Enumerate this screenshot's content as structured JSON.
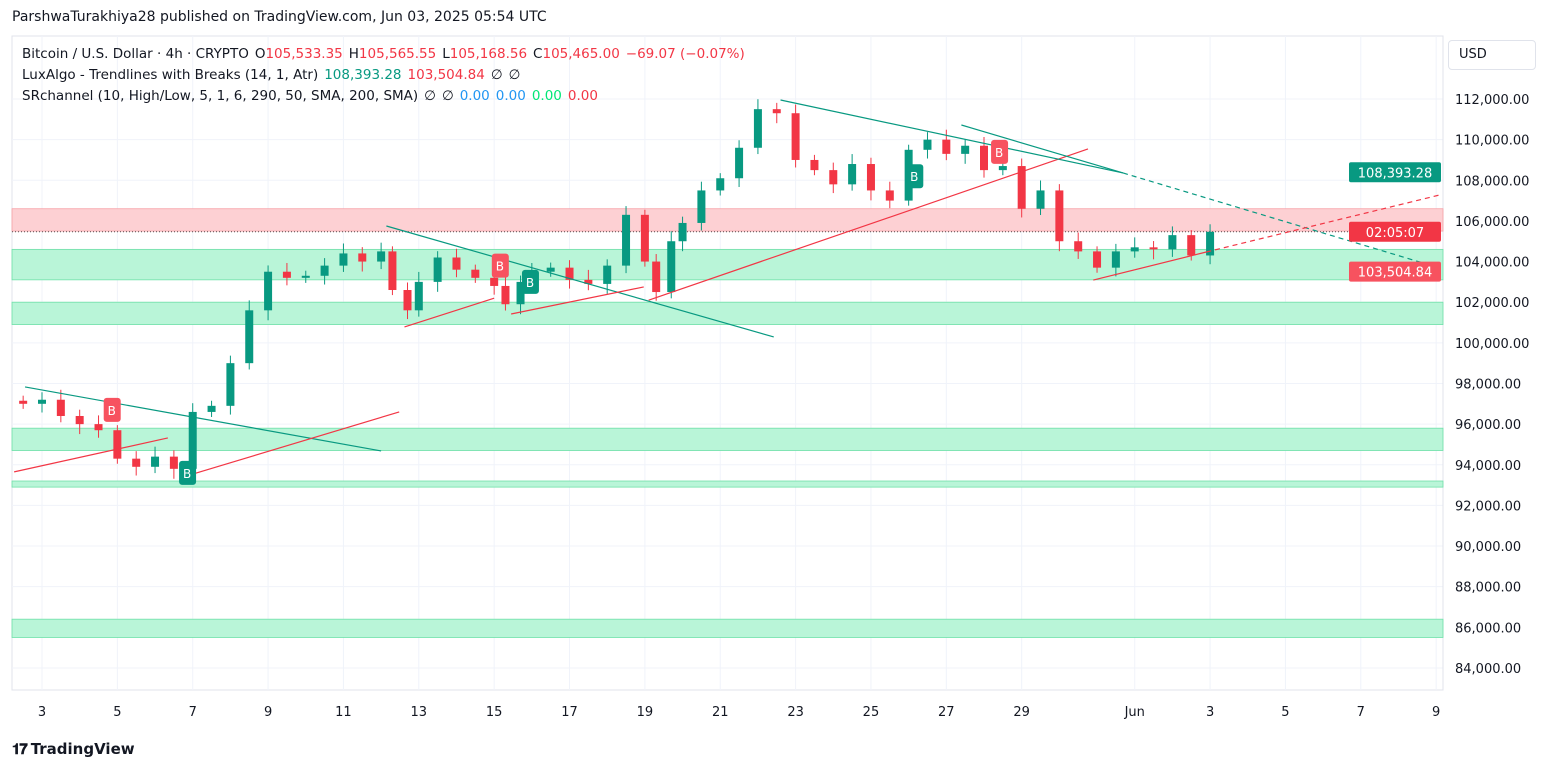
{
  "publisher": "ParshwaTurakhiya28 published on TradingView.com, Jun 03, 2025 05:54 UTC",
  "legend": {
    "symbol": "Bitcoin / U.S. Dollar · 4h · CRYPTO",
    "o_label": "O",
    "o": "105,533.35",
    "h_label": "H",
    "h": "105,565.55",
    "l_label": "L",
    "l": "105,168.56",
    "c_label": "C",
    "c": "105,465.00",
    "change": "−69.07 (−0.07%)",
    "indicator1": "LuxAlgo - Trendlines with Breaks (14, 1, Atr)",
    "ind1_v1": "108,393.28",
    "ind1_v2": "103,504.84",
    "ind1_v3": "∅",
    "ind1_v4": "∅",
    "indicator2": "SRchannel (10, High/Low, 5, 1, 6, 290, 50, SMA, 200, SMA)",
    "ind2_v1": "∅",
    "ind2_v2": "∅",
    "ind2_v3": "0.00",
    "ind2_v4": "0.00",
    "ind2_v5": "0.00",
    "ind2_v6": "0.00"
  },
  "currency_button": "USD",
  "footer_brand": "TradingView",
  "colors": {
    "up": "#089981",
    "down": "#f23645",
    "support_zone": "#b9f5d8",
    "resistance_zone": "#fdd0d3",
    "grid": "#f0f3fa"
  },
  "chart_data": {
    "type": "candlestick",
    "ylim": [
      83000,
      113500
    ],
    "y_ticks": [
      "84,000.00",
      "86,000.00",
      "88,000.00",
      "90,000.00",
      "92,000.00",
      "94,000.00",
      "96,000.00",
      "98,000.00",
      "100,000.00",
      "102,000.00",
      "104,000.00",
      "106,000.00",
      "108,000.00",
      "110,000.00",
      "112,000.00"
    ],
    "y_tick_values": [
      84000,
      86000,
      88000,
      90000,
      92000,
      94000,
      96000,
      98000,
      100000,
      102000,
      104000,
      106000,
      108000,
      110000,
      112000
    ],
    "x_range_days": [
      2.2,
      40.3
    ],
    "x_ticks": [
      {
        "label": "3",
        "day": 3
      },
      {
        "label": "5",
        "day": 5
      },
      {
        "label": "7",
        "day": 7
      },
      {
        "label": "9",
        "day": 9
      },
      {
        "label": "11",
        "day": 11
      },
      {
        "label": "13",
        "day": 13
      },
      {
        "label": "15",
        "day": 15
      },
      {
        "label": "17",
        "day": 17
      },
      {
        "label": "19",
        "day": 19
      },
      {
        "label": "21",
        "day": 21
      },
      {
        "label": "23",
        "day": 23
      },
      {
        "label": "25",
        "day": 25
      },
      {
        "label": "27",
        "day": 27
      },
      {
        "label": "29",
        "day": 29
      },
      {
        "label": "Jun",
        "day": 32
      },
      {
        "label": "3",
        "day": 34
      },
      {
        "label": "5",
        "day": 36
      },
      {
        "label": "7",
        "day": 38
      },
      {
        "label": "9",
        "day": 40
      }
    ],
    "closes": [
      [
        2.5,
        97000
      ],
      [
        3,
        97200
      ],
      [
        3.5,
        96400
      ],
      [
        4,
        96000
      ],
      [
        4.5,
        95700
      ],
      [
        5,
        94300
      ],
      [
        5.5,
        93900
      ],
      [
        6,
        94400
      ],
      [
        6.5,
        93800
      ],
      [
        7,
        96600
      ],
      [
        7.5,
        96900
      ],
      [
        8,
        99000
      ],
      [
        8.5,
        101600
      ],
      [
        9,
        103500
      ],
      [
        9.5,
        103200
      ],
      [
        10,
        103300
      ],
      [
        10.5,
        103800
      ],
      [
        11,
        104400
      ],
      [
        11.5,
        104000
      ],
      [
        12,
        104500
      ],
      [
        12.3,
        102600
      ],
      [
        12.7,
        101600
      ],
      [
        13,
        103000
      ],
      [
        13.5,
        104200
      ],
      [
        14,
        103600
      ],
      [
        14.5,
        103200
      ],
      [
        15,
        102800
      ],
      [
        15.3,
        101900
      ],
      [
        15.7,
        103000
      ],
      [
        16,
        103500
      ],
      [
        16.5,
        103700
      ],
      [
        17,
        103100
      ],
      [
        17.5,
        102900
      ],
      [
        18,
        103800
      ],
      [
        18.5,
        106300
      ],
      [
        19,
        104000
      ],
      [
        19.3,
        102500
      ],
      [
        19.7,
        105000
      ],
      [
        20,
        105900
      ],
      [
        20.5,
        107500
      ],
      [
        21,
        108100
      ],
      [
        21.5,
        109600
      ],
      [
        22,
        111500
      ],
      [
        22.5,
        111300
      ],
      [
        23,
        109000
      ],
      [
        23.5,
        108500
      ],
      [
        24,
        107800
      ],
      [
        24.5,
        108800
      ],
      [
        25,
        107500
      ],
      [
        25.5,
        107000
      ],
      [
        26,
        109500
      ],
      [
        26.5,
        110000
      ],
      [
        27,
        109300
      ],
      [
        27.5,
        109700
      ],
      [
        28,
        108500
      ],
      [
        28.5,
        108700
      ],
      [
        29,
        106600
      ],
      [
        29.5,
        107500
      ],
      [
        30,
        105000
      ],
      [
        30.5,
        104500
      ],
      [
        31,
        103700
      ],
      [
        31.5,
        104500
      ],
      [
        32,
        104700
      ],
      [
        32.5,
        104600
      ],
      [
        33,
        105300
      ],
      [
        33.5,
        104300
      ],
      [
        34,
        105465
      ]
    ],
    "zones": [
      {
        "kind": "resistance",
        "from": 105500,
        "to": 106600
      },
      {
        "kind": "support",
        "from": 103100,
        "to": 104600
      },
      {
        "kind": "support",
        "from": 100900,
        "to": 102000
      },
      {
        "kind": "support",
        "from": 94700,
        "to": 95800
      },
      {
        "kind": "support",
        "from": 92900,
        "to": 93200
      },
      {
        "kind": "support",
        "from": 85500,
        "to": 86400
      }
    ],
    "trendlines": [
      {
        "color": "teal",
        "p1": [
          2.55,
          97830
        ],
        "p2": [
          12.0,
          94680
        ]
      },
      {
        "color": "red",
        "p1": [
          2.26,
          93650
        ],
        "p2": [
          6.34,
          95320
        ]
      },
      {
        "color": "red",
        "p1": [
          6.66,
          93350
        ],
        "p2": [
          12.48,
          96600
        ]
      },
      {
        "color": "teal",
        "p1": [
          12.14,
          105750
        ],
        "p2": [
          22.42,
          100290
        ]
      },
      {
        "color": "red",
        "p1": [
          12.62,
          100780
        ],
        "p2": [
          15.0,
          102200
        ]
      },
      {
        "color": "red",
        "p1": [
          15.45,
          101420
        ],
        "p2": [
          18.97,
          102750
        ]
      },
      {
        "color": "red",
        "p1": [
          19.1,
          102100
        ],
        "p2": [
          30.76,
          109540
        ]
      },
      {
        "color": "teal",
        "p1": [
          22.6,
          111950
        ],
        "p2": [
          31.69,
          108360
        ]
      },
      {
        "color": "teal",
        "p1": [
          27.4,
          110720
        ],
        "p2": [
          31.69,
          108360
        ]
      },
      {
        "color": "teal",
        "p1": [
          31.69,
          108360
        ],
        "p2": [
          40.1,
          103680
        ],
        "dashed": true
      },
      {
        "color": "red",
        "p1": [
          30.9,
          103090
        ],
        "p2": [
          33.9,
          104470
        ]
      },
      {
        "color": "red",
        "p1": [
          33.9,
          104470
        ],
        "p2": [
          40.1,
          107280
        ],
        "dashed": true
      }
    ],
    "break_markers": [
      {
        "label": "B",
        "kind": "down",
        "day": 4.85,
        "price": 96700
      },
      {
        "label": "B",
        "kind": "up",
        "day": 6.85,
        "price": 93600
      },
      {
        "label": "B",
        "kind": "down",
        "day": 15.15,
        "price": 103800
      },
      {
        "label": "B",
        "kind": "up",
        "day": 15.95,
        "price": 103000
      },
      {
        "label": "B",
        "kind": "up",
        "day": 26.15,
        "price": 108200
      },
      {
        "label": "B",
        "kind": "down",
        "day": 28.4,
        "price": 109400
      }
    ],
    "price_labels": [
      {
        "text": "108,393.28",
        "price": 108393.28,
        "color": "#089981"
      },
      {
        "text": "02:05:07",
        "price": 105465,
        "color": "#f23645"
      },
      {
        "text": "103,504.84",
        "price": 103504.84,
        "color": "#f7525f"
      }
    ],
    "last_price": 105465
  }
}
